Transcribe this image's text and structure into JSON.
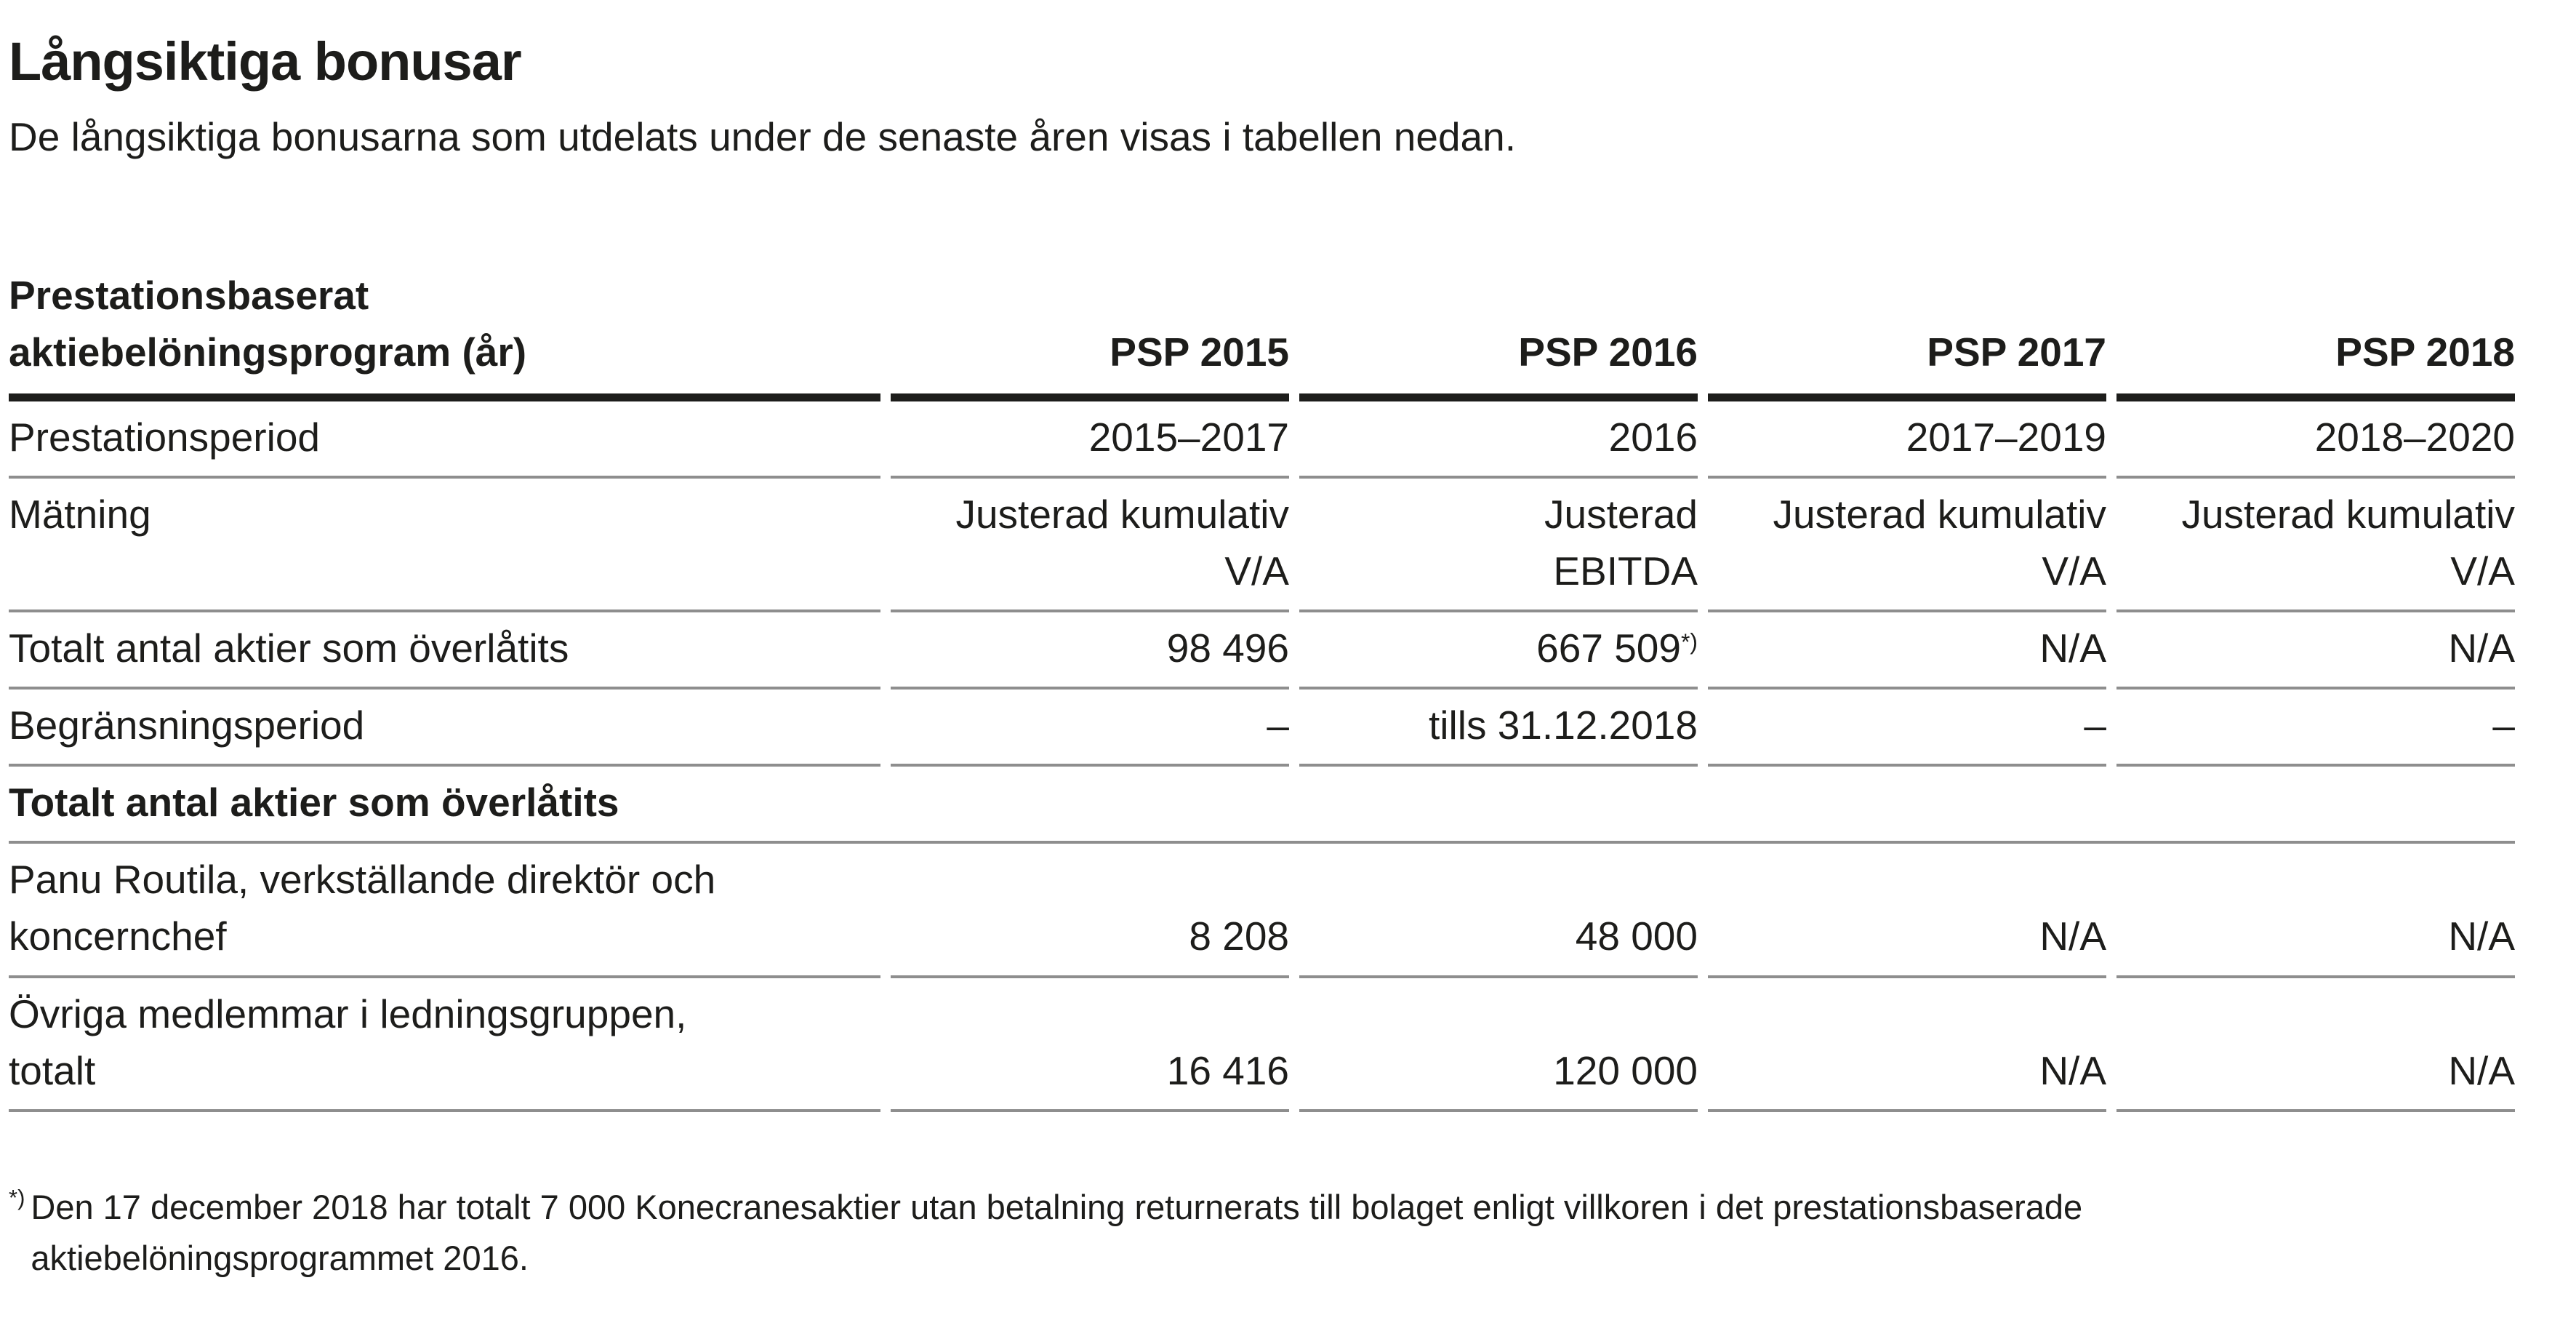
{
  "title": "Långsiktiga bonusar",
  "subtitle": "De långsiktiga bonusarna som utdelats under de senaste åren visas i tabellen nedan.",
  "table": {
    "header": {
      "label": "Prestationsbaserat\naktiebelöningsprogram (år)",
      "columns": [
        "PSP 2015",
        "PSP 2016",
        "PSP 2017",
        "PSP 2018"
      ]
    },
    "rows": [
      {
        "label": "Prestationsperiod",
        "values": [
          "2015–2017",
          "2016",
          "2017–2019",
          "2018–2020"
        ]
      },
      {
        "label": "Mätning",
        "values": [
          "Justerad kumulativ\nV/A",
          "Justerad\nEBITDA",
          "Justerad kumulativ\nV/A",
          "Justerad kumulativ\nV/A"
        ]
      },
      {
        "label": "Totalt antal aktier som överlåtits",
        "values": [
          "98 496",
          {
            "text": "667 509",
            "sup": "*)"
          },
          "N/A",
          "N/A"
        ]
      },
      {
        "label": "Begränsningsperiod",
        "values": [
          "–",
          "tills 31.12.2018",
          "–",
          "–"
        ]
      },
      {
        "section": true,
        "label": "Totalt antal aktier som överlåtits"
      },
      {
        "label": "Panu Routila, verkställande direktör och\nkoncernchef",
        "values": [
          "8 208",
          "48 000",
          "N/A",
          "N/A"
        ]
      },
      {
        "label": "Övriga medlemmar i ledningsgruppen,\ntotalt",
        "values": [
          "16 416",
          "120 000",
          "N/A",
          "N/A"
        ]
      }
    ]
  },
  "footnote": {
    "marker": "*)",
    "text": "Den 17 december 2018 har totalt 7 000 Konecranesaktier utan betalning returnerats till bolaget enligt villkoren i det prestationsbaserade\naktiebelöningsprogrammet 2016."
  },
  "colors": {
    "text": "#1d1d1b",
    "rule_thick": "#1d1d1b",
    "rule_thin": "#8e8e8e",
    "background": "#ffffff"
  }
}
